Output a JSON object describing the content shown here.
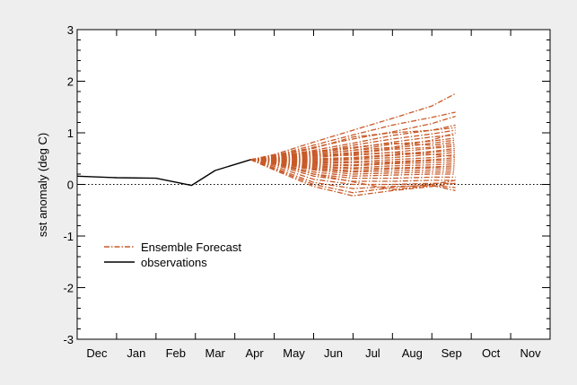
{
  "chart_data": {
    "type": "line",
    "title": "",
    "xlabel": "",
    "ylabel": "sst anomaly (deg C)",
    "ylim": [
      -3,
      3
    ],
    "xlim": [
      -0.5,
      11.5
    ],
    "x_tick_labels": [
      "Dec",
      "Jan",
      "Feb",
      "Mar",
      "Apr",
      "May",
      "Jun",
      "Jul",
      "Aug",
      "Sep",
      "Oct",
      "Nov"
    ],
    "y_ticks": [
      -3,
      -2,
      -1,
      0,
      1,
      2,
      3
    ],
    "y_tick_labels": [
      "-3",
      "-2",
      "-1",
      "0",
      "1",
      "2",
      "3"
    ],
    "grid": false,
    "zero_reference_line": "dotted",
    "legend": {
      "placement": "lower-left",
      "entries": [
        {
          "label": "Ensemble Forecast",
          "style": "dash-dot",
          "color": "#c85a28"
        },
        {
          "label": "observations",
          "style": "solid",
          "color": "#000000"
        }
      ]
    },
    "series": [
      {
        "name": "observations",
        "color": "#000000",
        "style": "solid",
        "x": [
          -0.5,
          0.5,
          1.5,
          2.4,
          3.0,
          3.9
        ],
        "y": [
          0.16,
          0.13,
          0.12,
          -0.02,
          0.27,
          0.48
        ]
      }
    ],
    "ensemble": {
      "name": "Ensemble Forecast",
      "color": "#c85a28",
      "style": "dash-dot",
      "x": [
        3.9,
        4.5,
        5.5,
        6.5,
        7.5,
        8.5,
        9.1
      ],
      "members": [
        [
          0.48,
          0.58,
          0.82,
          1.05,
          1.28,
          1.52,
          1.76
        ],
        [
          0.48,
          0.56,
          0.76,
          0.96,
          1.15,
          1.3,
          1.4
        ],
        [
          0.48,
          0.55,
          0.72,
          0.88,
          1.02,
          1.18,
          1.32
        ],
        [
          0.48,
          0.54,
          0.7,
          0.92,
          1.0,
          1.05,
          1.15
        ],
        [
          0.48,
          0.53,
          0.66,
          0.8,
          0.95,
          1.05,
          1.1
        ],
        [
          0.48,
          0.52,
          0.62,
          0.76,
          0.88,
          0.98,
          1.05
        ],
        [
          0.48,
          0.52,
          0.62,
          0.7,
          0.82,
          0.92,
          0.96
        ],
        [
          0.48,
          0.51,
          0.6,
          0.66,
          0.78,
          0.84,
          0.9
        ],
        [
          0.48,
          0.5,
          0.56,
          0.62,
          0.7,
          0.8,
          0.86
        ],
        [
          0.48,
          0.5,
          0.54,
          0.6,
          0.68,
          0.72,
          0.78
        ],
        [
          0.48,
          0.49,
          0.52,
          0.58,
          0.62,
          0.7,
          0.74
        ],
        [
          0.48,
          0.48,
          0.5,
          0.52,
          0.58,
          0.64,
          0.7
        ],
        [
          0.48,
          0.48,
          0.48,
          0.5,
          0.56,
          0.62,
          0.66
        ],
        [
          0.48,
          0.47,
          0.46,
          0.48,
          0.52,
          0.58,
          0.62
        ],
        [
          0.48,
          0.47,
          0.44,
          0.44,
          0.48,
          0.52,
          0.58
        ],
        [
          0.48,
          0.46,
          0.42,
          0.42,
          0.44,
          0.48,
          0.52
        ],
        [
          0.48,
          0.46,
          0.4,
          0.38,
          0.42,
          0.46,
          0.48
        ],
        [
          0.48,
          0.45,
          0.38,
          0.36,
          0.4,
          0.42,
          0.44
        ],
        [
          0.48,
          0.45,
          0.36,
          0.32,
          0.36,
          0.38,
          0.4
        ],
        [
          0.48,
          0.44,
          0.34,
          0.3,
          0.32,
          0.34,
          0.36
        ],
        [
          0.48,
          0.44,
          0.32,
          0.26,
          0.3,
          0.32,
          0.32
        ],
        [
          0.48,
          0.43,
          0.3,
          0.24,
          0.26,
          0.28,
          0.28
        ],
        [
          0.48,
          0.42,
          0.28,
          0.2,
          0.22,
          0.24,
          0.24
        ],
        [
          0.48,
          0.41,
          0.24,
          0.16,
          0.18,
          0.2,
          0.2
        ],
        [
          0.48,
          0.4,
          0.2,
          0.12,
          0.12,
          0.14,
          0.14
        ],
        [
          0.48,
          0.38,
          0.16,
          0.06,
          0.06,
          0.08,
          0.08
        ],
        [
          0.48,
          0.35,
          0.1,
          0.0,
          0.0,
          0.02,
          0.02
        ],
        [
          0.48,
          0.32,
          0.04,
          -0.08,
          -0.04,
          -0.02,
          -0.06
        ],
        [
          0.48,
          0.3,
          0.0,
          -0.16,
          -0.06,
          0.0,
          0.08
        ],
        [
          0.48,
          0.28,
          -0.04,
          -0.22,
          -0.12,
          -0.04,
          0.02
        ],
        [
          0.48,
          0.42,
          0.2,
          0.05,
          -0.1,
          -0.02,
          -0.12
        ],
        [
          0.48,
          0.5,
          0.58,
          0.66,
          0.72,
          0.86,
          1.0
        ],
        [
          0.48,
          0.53,
          0.64,
          0.72,
          0.8,
          0.76,
          0.82
        ],
        [
          0.48,
          0.51,
          0.58,
          0.56,
          0.62,
          0.58,
          0.54
        ]
      ]
    }
  }
}
